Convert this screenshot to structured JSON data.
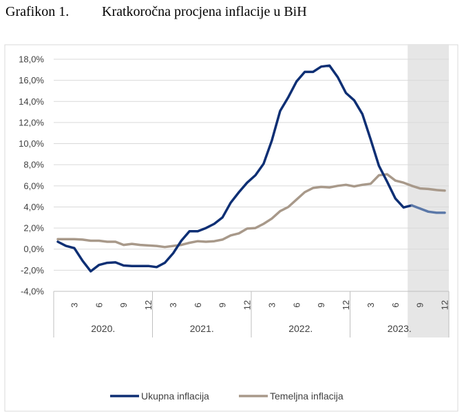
{
  "caption": {
    "number": "Grafikon 1.",
    "title": "Kratkoročna procjena inflacije u BiH"
  },
  "colors": {
    "total": "#0E2F74",
    "total_forecast": "#5B78A8",
    "core": "#A8998A",
    "core_forecast": "#A8998A",
    "forecast_shade": "#E6E6E6",
    "grid": "#D9D9D9"
  },
  "chart_data": {
    "type": "line",
    "ylim": [
      -4,
      18
    ],
    "ytick_step": 2,
    "ytick_labels": [
      "-4,0%",
      "-2,0%",
      "0,0%",
      "2,0%",
      "4,0%",
      "6,0%",
      "8,0%",
      "10,0%",
      "12,0%",
      "14,0%",
      "16,0%",
      "18,0%"
    ],
    "x_month_ticks": [
      "3",
      "6",
      "9",
      "12",
      "3",
      "6",
      "9",
      "12",
      "3",
      "6",
      "9",
      "12",
      "3",
      "6",
      "9",
      "12"
    ],
    "years": [
      "2020.",
      "2021.",
      "2022.",
      "2023."
    ],
    "months_per_year": 12,
    "forecast_start": "2023-08",
    "grid": true,
    "legend_position": "bottom",
    "series": [
      {
        "name": "Ukupna inflacija",
        "start": "2020-01",
        "values": [
          0.7,
          0.3,
          0.1,
          -1.1,
          -2.1,
          -1.5,
          -1.3,
          -1.25,
          -1.55,
          -1.6,
          -1.6,
          -1.6,
          -1.7,
          -1.3,
          -0.4,
          0.8,
          1.7,
          1.7,
          2.0,
          2.4,
          3.0,
          4.4,
          5.4,
          6.3,
          7.0,
          8.1,
          10.3,
          13.1,
          14.4,
          15.9,
          16.8,
          16.8,
          17.3,
          17.4,
          16.3,
          14.8,
          14.1,
          12.8,
          10.4,
          7.9,
          6.4,
          4.8,
          3.95,
          4.15,
          3.85,
          3.55,
          3.45,
          3.45
        ]
      },
      {
        "name": "Temeljna inflacija",
        "start": "2020-01",
        "values": [
          0.95,
          0.95,
          0.95,
          0.9,
          0.8,
          0.8,
          0.7,
          0.7,
          0.4,
          0.5,
          0.4,
          0.35,
          0.3,
          0.2,
          0.3,
          0.4,
          0.6,
          0.75,
          0.7,
          0.75,
          0.9,
          1.3,
          1.5,
          1.95,
          2.0,
          2.4,
          2.9,
          3.6,
          4.0,
          4.7,
          5.4,
          5.8,
          5.9,
          5.85,
          6.0,
          6.1,
          5.95,
          6.1,
          6.2,
          7.0,
          7.1,
          6.5,
          6.3,
          6.0,
          5.75,
          5.7,
          5.6,
          5.55
        ]
      }
    ]
  }
}
